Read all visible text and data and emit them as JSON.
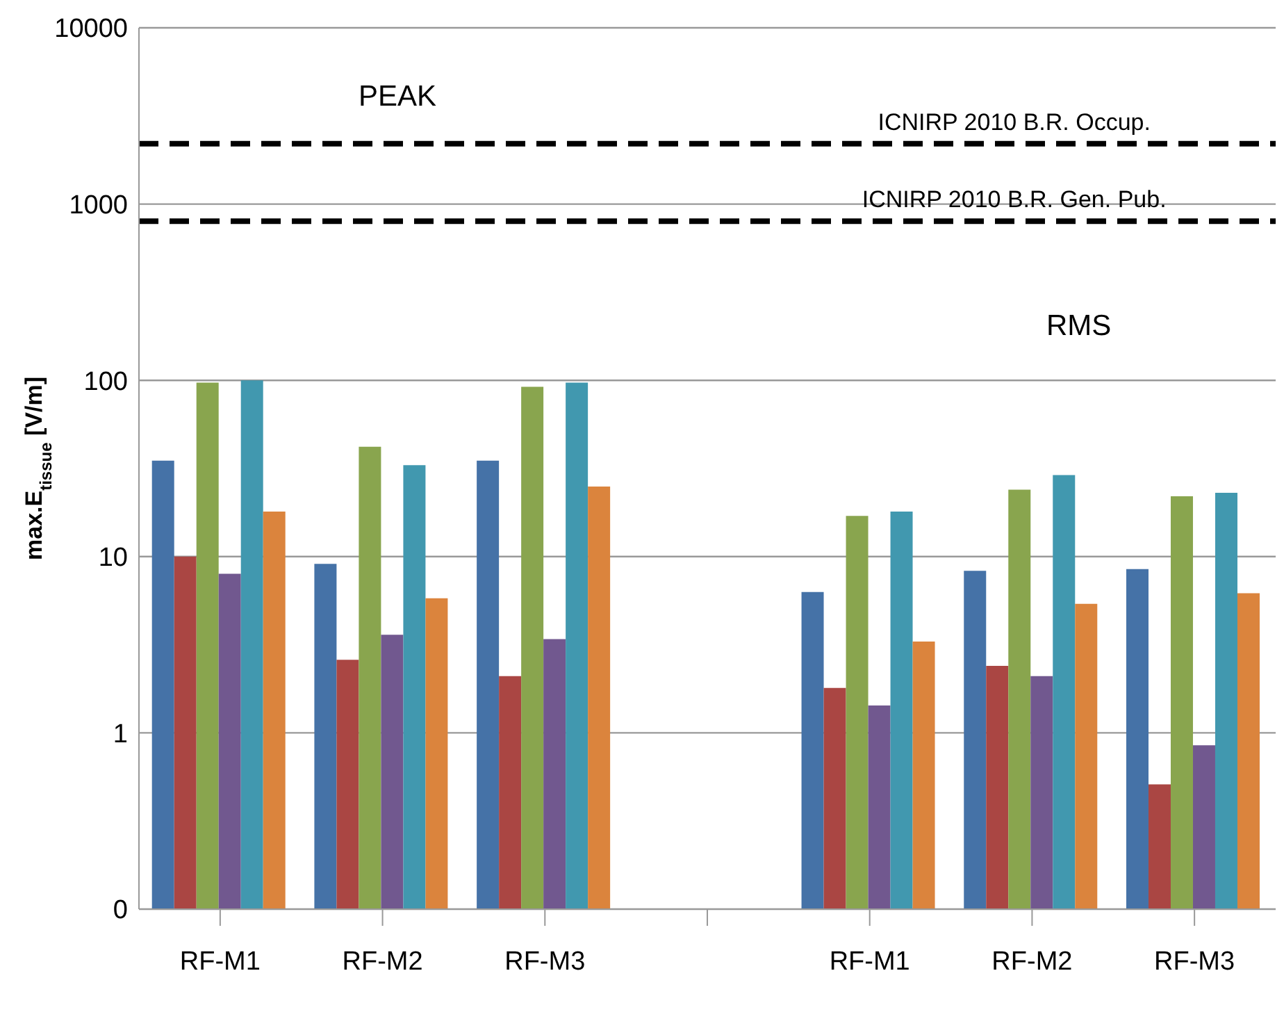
{
  "chart_data": {
    "type": "bar",
    "ylabel": "max.E$_{tissue}$ [V/m]",
    "categories": [
      "RF-M1",
      "RF-M2",
      "RF-M3",
      null,
      "RF-M1",
      "RF-M2",
      "RF-M3"
    ],
    "series": [
      {
        "color": "#4572a7",
        "values": [
          35,
          9.1,
          35,
          null,
          6.3,
          8.3,
          8.5
        ]
      },
      {
        "color": "#aa4643",
        "values": [
          10,
          2.6,
          2.1,
          null,
          1.8,
          2.4,
          0.51
        ]
      },
      {
        "color": "#89a54e",
        "values": [
          97,
          42,
          92,
          null,
          17,
          24,
          22
        ]
      },
      {
        "color": "#71588f",
        "values": [
          8,
          3.6,
          3.4,
          null,
          1.43,
          2.1,
          0.85
        ]
      },
      {
        "color": "#4198af",
        "values": [
          100,
          33,
          97,
          null,
          18,
          29,
          23
        ]
      },
      {
        "color": "#db843d",
        "values": [
          18,
          5.8,
          25,
          null,
          3.3,
          5.4,
          6.2
        ]
      }
    ],
    "log": "y",
    "ylim": [
      0.1,
      10000
    ],
    "yticks": [
      {
        "value": 0.1,
        "label": "0"
      },
      1,
      10,
      100,
      1000,
      10000
    ],
    "grid": "y",
    "ref_lines": [
      {
        "axis": "y",
        "value": 2200,
        "label": "ICNIRP 2010 B.R. Occup.",
        "color": "#000000",
        "line_style": "dashed"
      },
      {
        "axis": "y",
        "value": 800,
        "label": "ICNIRP 2010 B.R. Gen. Pub.",
        "color": "#000000",
        "line_style": "dashed"
      }
    ],
    "annotations": [
      "PEAK",
      "RMS"
    ]
  }
}
